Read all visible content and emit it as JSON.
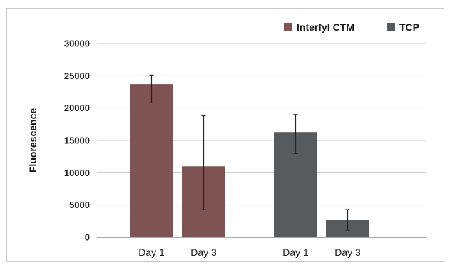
{
  "chart_data": {
    "type": "bar",
    "title": "",
    "xlabel": "",
    "ylabel": "Fluorescence",
    "ylim": [
      0,
      30000
    ],
    "yticks": [
      0,
      5000,
      10000,
      15000,
      20000,
      25000,
      30000
    ],
    "ytick_labels": [
      "0",
      "5000",
      "10000",
      "15000",
      "20000",
      "25000",
      "30000"
    ],
    "grid": true,
    "legend_position": "top-right",
    "groups": [
      {
        "series_name": "Interfyl CTM",
        "color": "#7e5353",
        "bars": [
          {
            "category": "Day 1",
            "value": 23700,
            "err_low": 20800,
            "err_high": 25100
          },
          {
            "category": "Day 3",
            "value": 11000,
            "err_low": 4300,
            "err_high": 18800
          }
        ]
      },
      {
        "series_name": "TCP",
        "color": "#575b5d",
        "bars": [
          {
            "category": "Day 1",
            "value": 16300,
            "err_low": 13000,
            "err_high": 19000
          },
          {
            "category": "Day 3",
            "value": 2700,
            "err_low": 1100,
            "err_high": 4300
          }
        ]
      }
    ],
    "legend": [
      {
        "name": "Interfyl CTM",
        "color": "#7e5353"
      },
      {
        "name": "TCP",
        "color": "#575b5d"
      }
    ],
    "colors": {
      "gridline": "#c7c7c7",
      "baseline": "#aaaaaa",
      "errorbar": "#222222"
    }
  }
}
